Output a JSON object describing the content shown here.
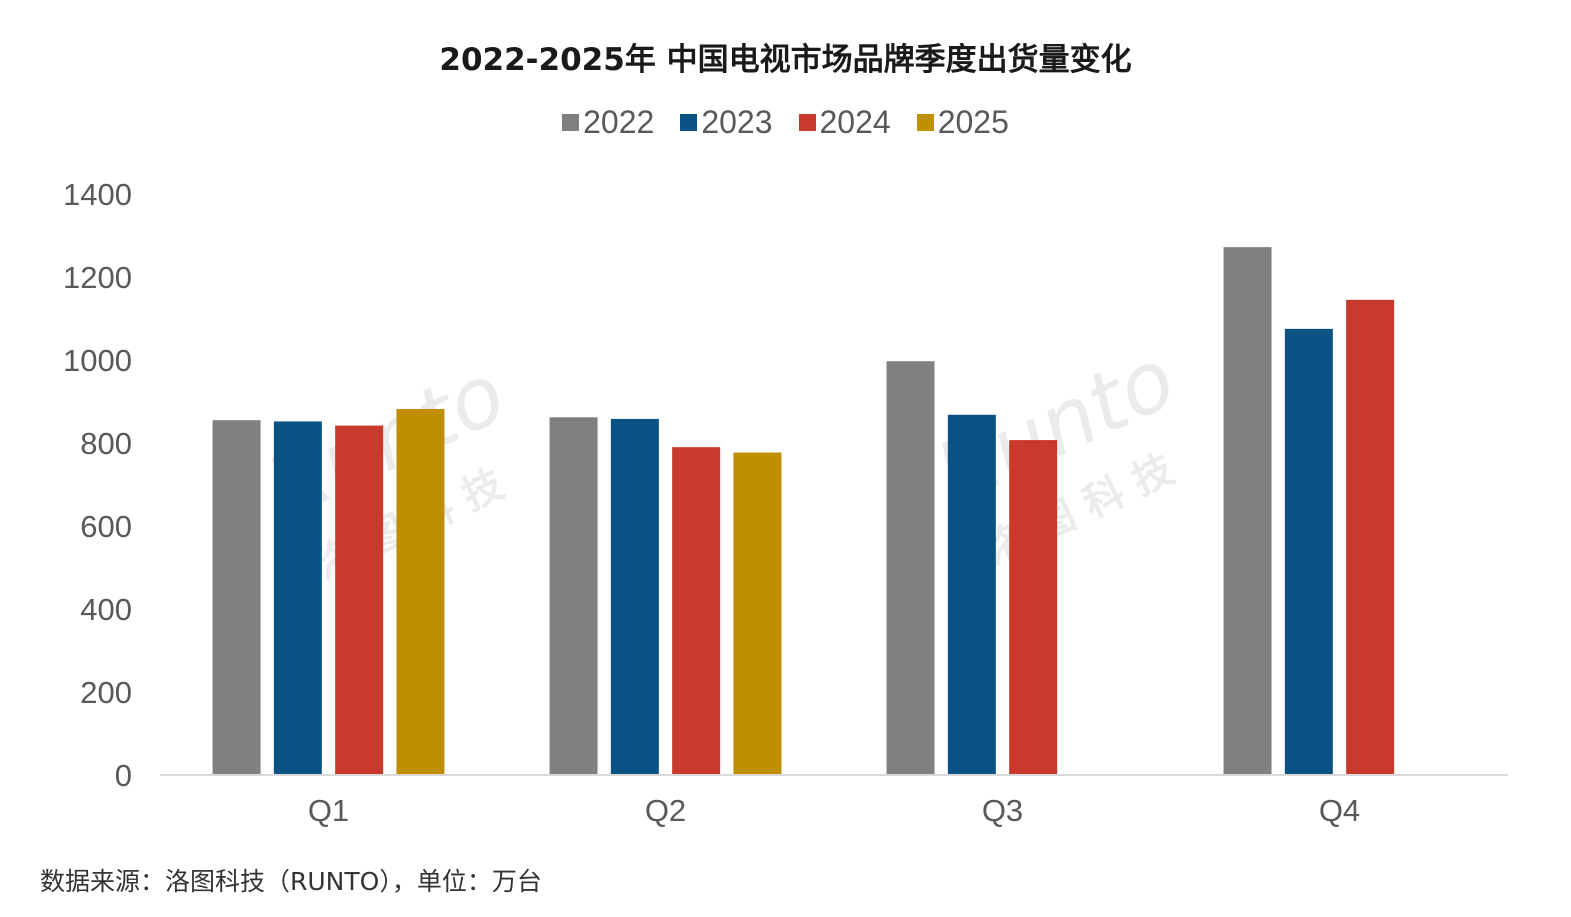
{
  "title": "2022-2025年 中国电视市场品牌季度出货量变化",
  "source_note": "数据来源：洛图科技（RUNTO），单位：万台",
  "watermark": {
    "text": "Runto",
    "cn": "洛 图 科 技"
  },
  "colors": {
    "2022": "#808080",
    "2023": "#0b5284",
    "2024": "#c83a2b",
    "2025": "#bf8f00",
    "axis": "#d9d9d9",
    "tick_text": "#595959"
  },
  "chart_data": {
    "type": "bar",
    "title": "2022-2025年 中国电视市场品牌季度出货量变化",
    "xlabel": "",
    "ylabel": "",
    "categories": [
      "Q1",
      "Q2",
      "Q3",
      "Q4"
    ],
    "series": [
      {
        "name": "2022",
        "values": [
          855,
          862,
          997,
          1272
        ]
      },
      {
        "name": "2023",
        "values": [
          852,
          858,
          868,
          1075
        ]
      },
      {
        "name": "2024",
        "values": [
          842,
          790,
          807,
          1145
        ]
      },
      {
        "name": "2025",
        "values": [
          882,
          777,
          null,
          null
        ]
      }
    ],
    "ylim": [
      0,
      1400
    ],
    "yticks": [
      0,
      200,
      400,
      600,
      800,
      1000,
      1200,
      1400
    ],
    "grid": false,
    "legend_position": "top"
  }
}
